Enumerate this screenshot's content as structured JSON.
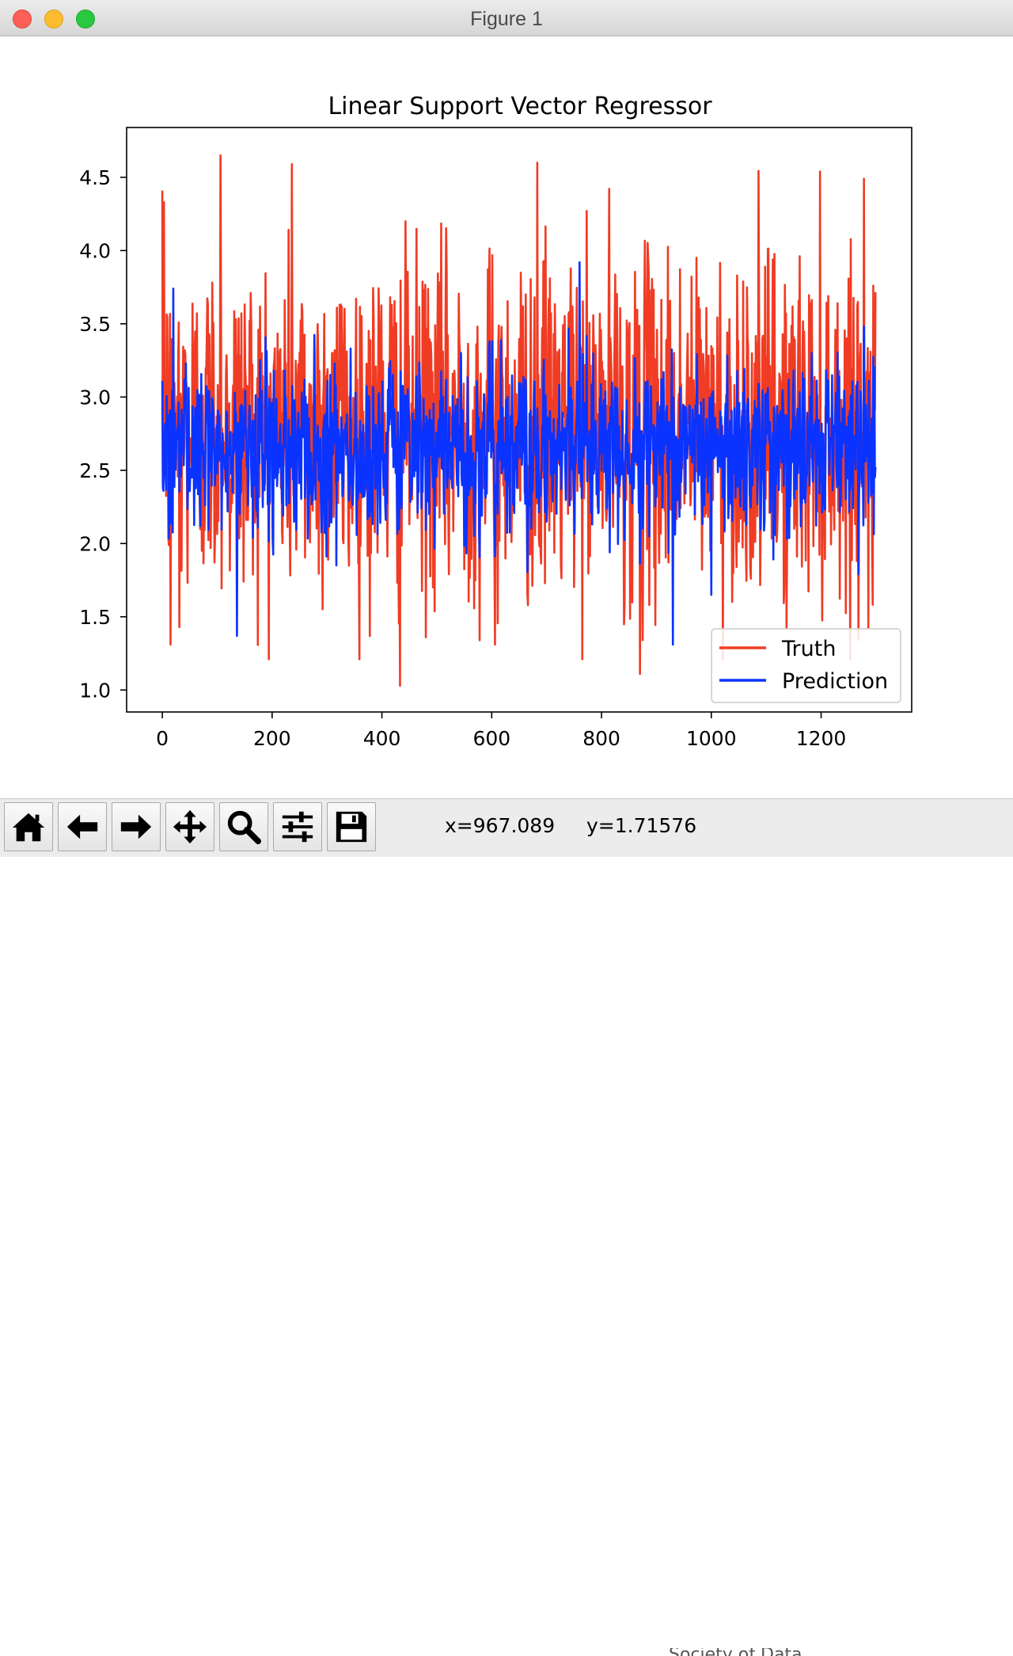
{
  "window": {
    "title": "Figure 1"
  },
  "toolbar": {
    "buttons": [
      {
        "name": "home-button",
        "icon": "home-icon"
      },
      {
        "name": "back-button",
        "icon": "arrow-left-icon"
      },
      {
        "name": "forward-button",
        "icon": "arrow-right-icon"
      },
      {
        "name": "pan-button",
        "icon": "move-icon"
      },
      {
        "name": "zoom-button",
        "icon": "magnifier-icon"
      },
      {
        "name": "configure-subplots-button",
        "icon": "sliders-icon"
      },
      {
        "name": "save-button",
        "icon": "floppy-disk-icon"
      }
    ],
    "x_readout": "x=967.089",
    "y_readout": "y=1.71576"
  },
  "behind_text": "Society of Data",
  "chart_data": {
    "type": "line",
    "title": "Linear Support Vector Regressor",
    "xlabel": "",
    "ylabel": "",
    "xlim": [
      -65,
      1365
    ],
    "ylim": [
      0.85,
      4.84
    ],
    "x_ticks": [
      0,
      200,
      400,
      600,
      800,
      1000,
      1200
    ],
    "y_ticks": [
      1.0,
      1.5,
      2.0,
      2.5,
      3.0,
      3.5,
      4.0,
      4.5
    ],
    "y_tick_labels": [
      "1.0",
      "1.5",
      "2.0",
      "2.5",
      "3.0",
      "3.5",
      "4.0",
      "4.5"
    ],
    "grid": false,
    "legend_position": "lower-right",
    "n_points": 1300,
    "series": [
      {
        "name": "Truth",
        "color": "#f03c24",
        "range": [
          1.03,
          4.66
        ],
        "center": 2.8,
        "notable_points": [
          {
            "x": 3,
            "y": 4.33
          },
          {
            "x": 15,
            "y": 1.31
          },
          {
            "x": 31,
            "y": 1.43
          },
          {
            "x": 106,
            "y": 4.65
          },
          {
            "x": 236,
            "y": 4.59
          },
          {
            "x": 433,
            "y": 1.03
          },
          {
            "x": 606,
            "y": 1.31
          },
          {
            "x": 683,
            "y": 4.6
          },
          {
            "x": 870,
            "y": 1.11
          },
          {
            "x": 1137,
            "y": 1.42
          }
        ]
      },
      {
        "name": "Prediction",
        "color": "#0a33ff",
        "range": [
          1.31,
          3.92
        ],
        "center": 2.65,
        "notable_points": [
          {
            "x": 20,
            "y": 3.74
          },
          {
            "x": 136,
            "y": 1.37
          },
          {
            "x": 760,
            "y": 3.92
          },
          {
            "x": 930,
            "y": 1.31
          },
          {
            "x": 1000,
            "y": 1.65
          }
        ]
      }
    ]
  }
}
